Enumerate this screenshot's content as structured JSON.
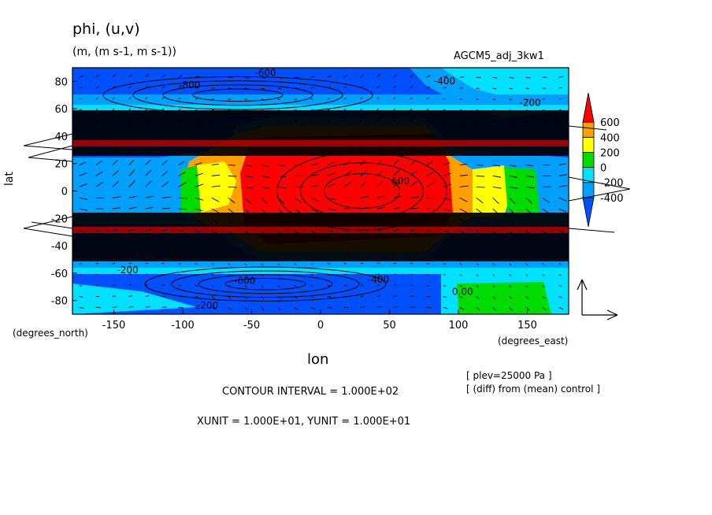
{
  "header": {
    "title": "phi, (u,v)",
    "units": "(m, (m s-1, m s-1))",
    "run_name": "AGCM5_adj_3kw1"
  },
  "footer": {
    "lon_label": "lon",
    "lat_units": "(degrees_north)",
    "lon_units": "(degrees_east)",
    "contour_interval": "CONTOUR INTERVAL = 1.000E+02",
    "vector_units": "XUNIT = 1.000E+01, YUNIT = 1.000E+01",
    "note_plev": "[ plev=25000 Pa ]",
    "note_diff": "[ (diff) from (mean) control ]"
  },
  "chart_data": {
    "type": "heatmap",
    "title": "phi, (u,v)",
    "subtitle": "(m, (m s-1, m s-1))",
    "xlabel": "lon",
    "ylabel": "lat",
    "xlim": [
      -180,
      180
    ],
    "ylim": [
      -90,
      90
    ],
    "xticks": [
      -150,
      -100,
      -50,
      0,
      50,
      100,
      150
    ],
    "yticks": [
      -80,
      -60,
      -40,
      -20,
      0,
      20,
      40,
      60,
      80
    ],
    "xtick_labels": [
      "-150",
      "-100",
      "-50",
      "0",
      "50",
      "100",
      "150"
    ],
    "ytick_labels": [
      "-80",
      "-60",
      "-40",
      "-20",
      "0",
      "20",
      "40",
      "60",
      "80"
    ],
    "colorbar": {
      "levels": [
        -600,
        -400,
        -200,
        0,
        200,
        400,
        600,
        800
      ],
      "tick_values": [
        600,
        400,
        200,
        0,
        -200,
        -400
      ],
      "tick_labels": [
        "600",
        "400",
        "200",
        "0",
        "-200",
        "-400"
      ],
      "colors": [
        "#0050ff",
        "#00a0ff",
        "#00e0ff",
        "#00dc00",
        "#ffff00",
        "#ffa000",
        "#ff0000"
      ]
    },
    "contour_labels": [
      {
        "lon": -95,
        "lat": 75,
        "text": "-800"
      },
      {
        "lon": -40,
        "lat": 84,
        "text": "-600"
      },
      {
        "lon": 90,
        "lat": 78,
        "text": "-400"
      },
      {
        "lon": 152,
        "lat": 62,
        "text": "-200"
      },
      {
        "lon": 58,
        "lat": 5,
        "text": "600"
      },
      {
        "lon": -55,
        "lat": -68,
        "text": "-600"
      },
      {
        "lon": 42,
        "lat": -67,
        "text": "-400"
      },
      {
        "lon": -140,
        "lat": -60,
        "text": "-200"
      },
      {
        "lon": -82,
        "lat": -86,
        "text": "-200"
      },
      {
        "lon": 103,
        "lat": -76,
        "text": "0.00"
      }
    ],
    "reference_vector": {
      "x": 10,
      "y": 10,
      "units": "m s-1"
    }
  }
}
